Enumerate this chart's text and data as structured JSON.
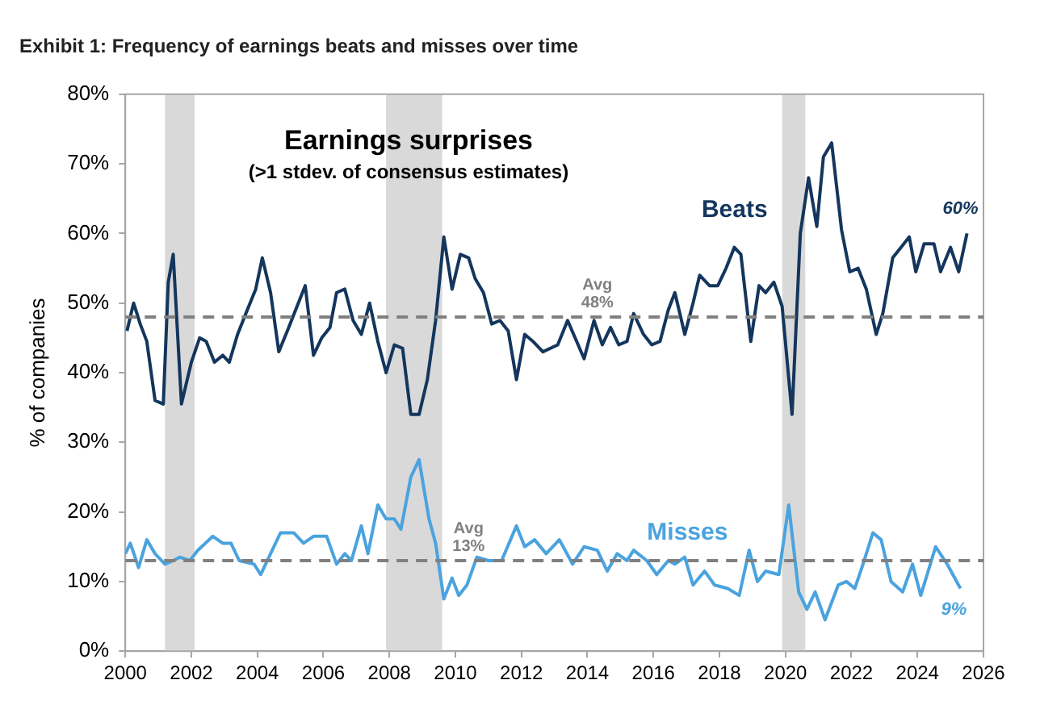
{
  "chart_data": {
    "type": "line",
    "title": "Exhibit 1: Frequency of earnings beats and misses over time",
    "subtitle": "Earnings surprises",
    "ylabel": "% of companies",
    "annotations": [
      "(>1 stdev. of consensus estimates)",
      {
        "text": "60%",
        "x": 2025.5,
        "y": 60
      },
      {
        "text": "9%",
        "x": 2025.3,
        "y": 9
      }
    ],
    "xlim": [
      2000,
      2026
    ],
    "xticks": [
      2000,
      2002,
      2004,
      2006,
      2008,
      2010,
      2012,
      2014,
      2016,
      2018,
      2020,
      2022,
      2024,
      2026
    ],
    "ylim": [
      0,
      80
    ],
    "yticks": [
      {
        "value": 0,
        "label": "0%"
      },
      {
        "value": 10,
        "label": "10%"
      },
      {
        "value": 20,
        "label": "20%"
      },
      {
        "value": 30,
        "label": "30%"
      },
      {
        "value": 40,
        "label": "40%"
      },
      {
        "value": 50,
        "label": "50%"
      },
      {
        "value": 60,
        "label": "60%"
      },
      {
        "value": 70,
        "label": "70%"
      },
      {
        "value": 80,
        "label": "80%"
      }
    ],
    "grid": false,
    "legend": false,
    "marker": "none",
    "line_style": "solid",
    "ref_lines": [
      {
        "axis": "y",
        "value": 48,
        "label": "Avg 48%",
        "color": "#808080",
        "line_style": "dashed"
      },
      {
        "axis": "y",
        "value": 13,
        "label": "Avg 13%",
        "color": "#808080",
        "line_style": "dashed"
      }
    ],
    "bands": [
      {
        "axis": "x",
        "from": 2001.2,
        "to": 2002.1,
        "color": "#d9d9d9"
      },
      {
        "axis": "x",
        "from": 2007.9,
        "to": 2009.6,
        "color": "#d9d9d9"
      },
      {
        "axis": "x",
        "from": 2019.9,
        "to": 2020.6,
        "color": "#d9d9d9"
      }
    ],
    "series": [
      {
        "name": "Beats",
        "color": "#14365d",
        "x": [
          2000.05,
          2000.25,
          2000.45,
          2000.65,
          2000.9,
          2001.15,
          2001.3,
          2001.45,
          2001.7,
          2002.0,
          2002.25,
          2002.45,
          2002.7,
          2002.95,
          2003.15,
          2003.4,
          2003.65,
          2003.95,
          2004.15,
          2004.4,
          2004.65,
          2004.95,
          2005.2,
          2005.45,
          2005.7,
          2005.95,
          2006.2,
          2006.4,
          2006.65,
          2006.9,
          2007.15,
          2007.4,
          2007.65,
          2007.9,
          2008.15,
          2008.4,
          2008.65,
          2008.9,
          2009.15,
          2009.4,
          2009.65,
          2009.9,
          2010.15,
          2010.4,
          2010.6,
          2010.85,
          2011.1,
          2011.35,
          2011.6,
          2011.85,
          2012.1,
          2012.35,
          2012.65,
          2013.1,
          2013.4,
          2013.9,
          2014.2,
          2014.45,
          2014.7,
          2014.95,
          2015.2,
          2015.4,
          2015.7,
          2015.95,
          2016.2,
          2016.45,
          2016.65,
          2016.95,
          2017.2,
          2017.4,
          2017.7,
          2017.95,
          2018.2,
          2018.45,
          2018.65,
          2018.95,
          2019.2,
          2019.4,
          2019.65,
          2019.9,
          2020.2,
          2020.45,
          2020.7,
          2020.95,
          2021.15,
          2021.4,
          2021.7,
          2021.95,
          2022.2,
          2022.45,
          2022.75,
          2022.95,
          2023.25,
          2023.5,
          2023.75,
          2023.95,
          2024.2,
          2024.5,
          2024.7,
          2025.0,
          2025.25,
          2025.5
        ],
        "values": [
          46,
          50,
          47,
          44.5,
          36,
          35.5,
          53,
          57,
          35.5,
          41.5,
          45,
          44.5,
          41.5,
          42.5,
          41.5,
          45.5,
          48.5,
          52,
          56.5,
          51.5,
          43,
          46.5,
          49.5,
          52.5,
          42.5,
          45,
          46.5,
          51.5,
          52,
          47.5,
          45.5,
          50,
          44.5,
          40,
          44,
          43.5,
          34,
          34,
          39,
          47.5,
          59.5,
          52,
          57,
          56.5,
          53.5,
          51.5,
          47,
          47.5,
          46,
          39,
          45.5,
          44.5,
          43,
          44,
          47.5,
          42,
          47.5,
          44,
          46.5,
          44,
          44.5,
          48.5,
          45.5,
          44,
          44.5,
          49,
          51.5,
          45.5,
          50,
          54,
          52.5,
          52.5,
          55,
          58,
          57,
          44.5,
          52.5,
          51.5,
          53,
          49.5,
          34,
          60,
          68,
          61,
          71,
          73,
          60.5,
          54.5,
          55,
          52,
          45.5,
          48.5,
          56.5,
          58,
          59.5,
          54.5,
          58.5,
          58.5,
          54.5,
          58,
          54.5,
          60
        ]
      },
      {
        "name": "Misses",
        "color": "#4aa3df",
        "x": [
          2000.0,
          2000.15,
          2000.4,
          2000.65,
          2000.9,
          2001.2,
          2001.45,
          2001.65,
          2001.95,
          2002.2,
          2002.65,
          2002.95,
          2003.2,
          2003.45,
          2003.9,
          2004.1,
          2004.4,
          2004.7,
          2005.1,
          2005.4,
          2005.7,
          2006.1,
          2006.4,
          2006.65,
          2006.85,
          2007.15,
          2007.35,
          2007.65,
          2007.9,
          2008.15,
          2008.35,
          2008.65,
          2008.9,
          2009.2,
          2009.4,
          2009.65,
          2009.9,
          2010.1,
          2010.35,
          2010.65,
          2011.0,
          2011.4,
          2011.85,
          2012.1,
          2012.4,
          2012.75,
          2013.15,
          2013.55,
          2013.9,
          2014.3,
          2014.6,
          2014.9,
          2015.2,
          2015.4,
          2015.8,
          2016.1,
          2016.45,
          2016.65,
          2016.95,
          2017.2,
          2017.55,
          2017.85,
          2018.25,
          2018.6,
          2018.9,
          2019.15,
          2019.4,
          2019.8,
          2020.1,
          2020.4,
          2020.65,
          2020.9,
          2021.2,
          2021.6,
          2021.85,
          2022.1,
          2022.35,
          2022.65,
          2022.9,
          2023.2,
          2023.55,
          2023.85,
          2024.1,
          2024.55,
          2024.9,
          2025.3
        ],
        "values": [
          14,
          15.5,
          12,
          16,
          14,
          12.5,
          13,
          13.5,
          13,
          14.5,
          16.5,
          15.5,
          15.5,
          13,
          12.5,
          11,
          14,
          17,
          17,
          15.5,
          16.5,
          16.5,
          12.5,
          14,
          13,
          18,
          14,
          21,
          19,
          19,
          17.5,
          25,
          27.5,
          19,
          15.5,
          7.5,
          10.5,
          8,
          9.5,
          13.5,
          13,
          13,
          18,
          15,
          16,
          14,
          16,
          12.5,
          15,
          14.5,
          11.5,
          14,
          13,
          14.5,
          13,
          11,
          13,
          12.5,
          13.5,
          9.5,
          11.5,
          9.5,
          9,
          8,
          14.5,
          10,
          11.5,
          11,
          21,
          8.5,
          6,
          8.5,
          4.5,
          9.5,
          10,
          9,
          12.5,
          17,
          16,
          10,
          8.5,
          12.5,
          8,
          15,
          12.5,
          9
        ]
      }
    ]
  }
}
